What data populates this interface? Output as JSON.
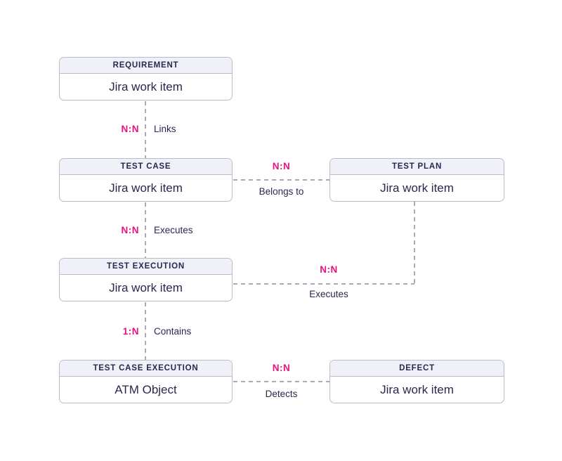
{
  "colors": {
    "accent_pink": "#e8127f",
    "text_navy": "#28284e",
    "box_border": "#b9bdc9",
    "header_fill": "#f0f1f8",
    "connector_gray": "#a8abb4",
    "background": "#ffffff"
  },
  "entities": {
    "requirement": {
      "title": "REQUIREMENT",
      "body": "Jira work item"
    },
    "test_case": {
      "title": "TEST CASE",
      "body": "Jira work item"
    },
    "test_plan": {
      "title": "TEST PLAN",
      "body": "Jira work item"
    },
    "test_execution": {
      "title": "TEST EXECUTION",
      "body": "Jira work item"
    },
    "test_case_execution": {
      "title": "TEST CASE EXECUTION",
      "body": "ATM Object"
    },
    "defect": {
      "title": "DEFECT",
      "body": "Jira work item"
    }
  },
  "relations": {
    "links": {
      "cardinality": "N:N",
      "label": "Links"
    },
    "belongs_to": {
      "cardinality": "N:N",
      "label": "Belongs to"
    },
    "executes_case": {
      "cardinality": "N:N",
      "label": "Executes"
    },
    "executes_plan": {
      "cardinality": "N:N",
      "label": "Executes"
    },
    "contains": {
      "cardinality": "1:N",
      "label": "Contains"
    },
    "detects": {
      "cardinality": "N:N",
      "label": "Detects"
    }
  }
}
